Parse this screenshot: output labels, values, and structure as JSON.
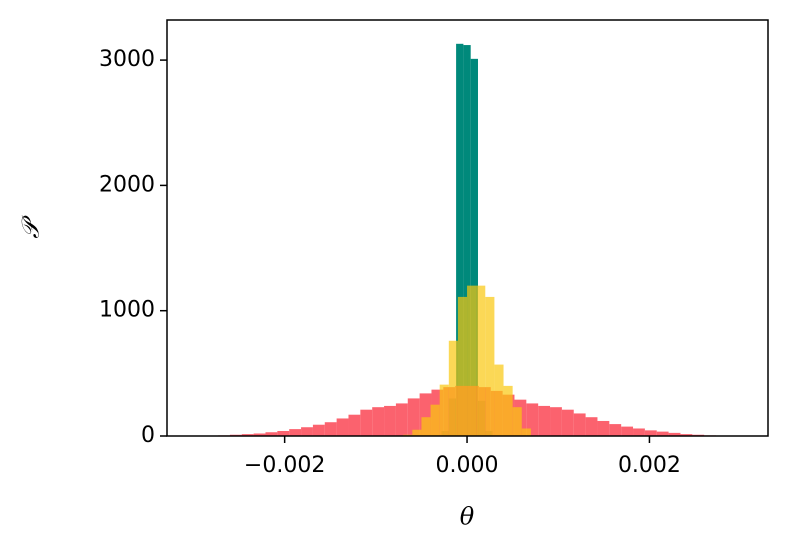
{
  "chart_data": {
    "type": "histogram",
    "x_label": "θ",
    "y_label": "𝒫",
    "xlim": [
      -0.00329,
      0.0033
    ],
    "ylim": [
      0,
      3320
    ],
    "xticks": [
      {
        "value": -0.002,
        "label": "−0.002"
      },
      {
        "value": 0,
        "label": "0.000"
      },
      {
        "value": 0.002,
        "label": "0.002"
      }
    ],
    "yticks": [
      0,
      1000,
      2000,
      3000
    ],
    "grid": false,
    "series": [
      {
        "color": "#00897b",
        "alpha": 1,
        "bins": [
          -0.00028,
          -0.0002,
          -0.00012,
          -4e-05,
          4e-05,
          0.00012,
          0.0002,
          0.00028
        ],
        "values": [
          40,
          300,
          3130,
          3120,
          3010,
          280,
          40
        ]
      },
      {
        "color": "#fa4655",
        "alpha": 0.85,
        "bins": [
          -0.00286,
          -0.00273,
          -0.0026,
          -0.00247,
          -0.00234,
          -0.00221,
          -0.00208,
          -0.00195,
          -0.00182,
          -0.00169,
          -0.00156,
          -0.00143,
          -0.0013,
          -0.00117,
          -0.00104,
          -0.00091,
          -0.00078,
          -0.00065,
          -0.00052,
          -0.00039,
          -0.00026,
          -0.00013,
          0,
          0.00013,
          0.00026,
          0.00039,
          0.00052,
          0.00065,
          0.00078,
          0.00091,
          0.00104,
          0.00117,
          0.0013,
          0.00143,
          0.00156,
          0.00169,
          0.00182,
          0.00195,
          0.00208,
          0.00221,
          0.00234,
          0.00247,
          0.0026,
          0.00273,
          0.00286
        ],
        "values": [
          3,
          5,
          10,
          15,
          20,
          30,
          40,
          55,
          70,
          90,
          110,
          140,
          170,
          210,
          230,
          240,
          260,
          300,
          340,
          370,
          390,
          400,
          400,
          390,
          360,
          330,
          290,
          260,
          240,
          230,
          210,
          180,
          150,
          120,
          95,
          75,
          60,
          45,
          35,
          25,
          15,
          10,
          5,
          3
        ]
      },
      {
        "color": "#f9c80e",
        "alpha": 0.7,
        "bins": [
          -0.0007,
          -0.0006,
          -0.0005,
          -0.0004,
          -0.0003,
          -0.0002,
          -0.0001,
          0,
          0.0001,
          0.0002,
          0.0003,
          0.0004,
          0.0005,
          0.0006,
          0.0007
        ],
        "values": [
          10,
          50,
          150,
          250,
          410,
          760,
          1110,
          1200,
          1200,
          1110,
          570,
          400,
          230,
          60
        ]
      }
    ]
  }
}
